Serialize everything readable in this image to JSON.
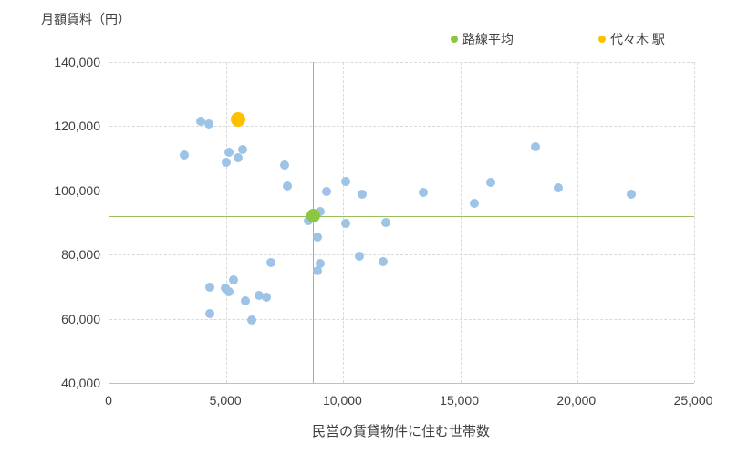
{
  "chart_data": {
    "type": "scatter",
    "title": "",
    "ylabel": "月額賃料（円）",
    "xlabel": "民営の賃貸物件に住む世帯数",
    "xlim": [
      0,
      25000
    ],
    "ylim": [
      40000,
      140000
    ],
    "grid": true,
    "gridline_color": "#d9d9d9",
    "axis_line_color": "#bfbfbf",
    "legend_position": "top",
    "x_ticks": [
      {
        "value": 0,
        "label": "0"
      },
      {
        "value": 5000,
        "label": "5,000"
      },
      {
        "value": 10000,
        "label": "10,000"
      },
      {
        "value": 15000,
        "label": "15,000"
      },
      {
        "value": 20000,
        "label": "20,000"
      },
      {
        "value": 25000,
        "label": "25,000"
      }
    ],
    "y_ticks": [
      {
        "value": 40000,
        "label": "40,000"
      },
      {
        "value": 60000,
        "label": "60,000"
      },
      {
        "value": 80000,
        "label": "80,000"
      },
      {
        "value": 100000,
        "label": "100,000"
      },
      {
        "value": 120000,
        "label": "120,000"
      },
      {
        "value": 140000,
        "label": "140,000"
      }
    ],
    "crosshair": {
      "x": 8700,
      "y": 92000,
      "color": "#97c15c"
    },
    "series": [
      {
        "name": "",
        "color": "#9dc3e6",
        "marker_size": 10,
        "points": [
          [
            3200,
            111000
          ],
          [
            3900,
            121500
          ],
          [
            4250,
            120700
          ],
          [
            5100,
            111900
          ],
          [
            5700,
            112700
          ],
          [
            5500,
            110200
          ],
          [
            5000,
            108700
          ],
          [
            7500,
            107900
          ],
          [
            7600,
            101400
          ],
          [
            9300,
            99700
          ],
          [
            10100,
            102800
          ],
          [
            10800,
            98900
          ],
          [
            9000,
            93400
          ],
          [
            8500,
            90600
          ],
          [
            10100,
            89800
          ],
          [
            11800,
            90100
          ],
          [
            8900,
            85500
          ],
          [
            6900,
            77500
          ],
          [
            9000,
            77300
          ],
          [
            8900,
            74900
          ],
          [
            10700,
            79500
          ],
          [
            11700,
            77900
          ],
          [
            5300,
            72200
          ],
          [
            4300,
            69800
          ],
          [
            4950,
            69500
          ],
          [
            5100,
            68400
          ],
          [
            5800,
            65600
          ],
          [
            6400,
            67300
          ],
          [
            6700,
            66700
          ],
          [
            4300,
            61600
          ],
          [
            6100,
            59700
          ],
          [
            13400,
            99400
          ],
          [
            15600,
            96000
          ],
          [
            16300,
            102600
          ],
          [
            18200,
            113700
          ],
          [
            19200,
            100800
          ],
          [
            22300,
            98900
          ]
        ]
      },
      {
        "name": "路線平均",
        "color": "#8dc63f",
        "marker_size": 15,
        "points": [
          [
            8700,
            92000
          ]
        ]
      },
      {
        "name": "代々木 駅",
        "color": "#ffc000",
        "marker_size": 16,
        "points": [
          [
            5500,
            122100
          ]
        ]
      }
    ]
  }
}
